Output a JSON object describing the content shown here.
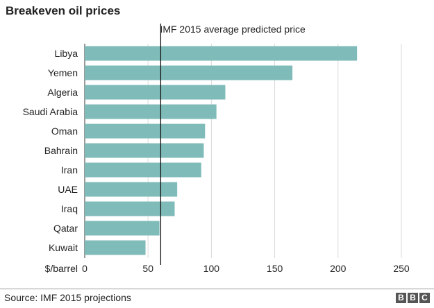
{
  "header": {
    "title": "Breakeven oil prices"
  },
  "chart_data": {
    "type": "bar",
    "orientation": "horizontal",
    "categories": [
      "Libya",
      "Yemen",
      "Algeria",
      "Saudi Arabia",
      "Oman",
      "Bahrain",
      "Iran",
      "UAE",
      "Iraq",
      "Qatar",
      "Kuwait"
    ],
    "values": [
      215,
      164,
      111,
      104,
      95,
      94,
      92,
      73,
      71,
      59,
      48
    ],
    "xlabel": "$/barrel",
    "xlim": [
      0,
      250
    ],
    "xticks": [
      0,
      50,
      100,
      150,
      200,
      250
    ],
    "grid": true,
    "reference_line": {
      "value": 60,
      "label": "IMF 2015 average predicted price"
    },
    "bar_color": "#7fbbb8"
  },
  "footer": {
    "source": "Source: IMF 2015 projections",
    "logo_letters": [
      "B",
      "B",
      "C"
    ]
  }
}
